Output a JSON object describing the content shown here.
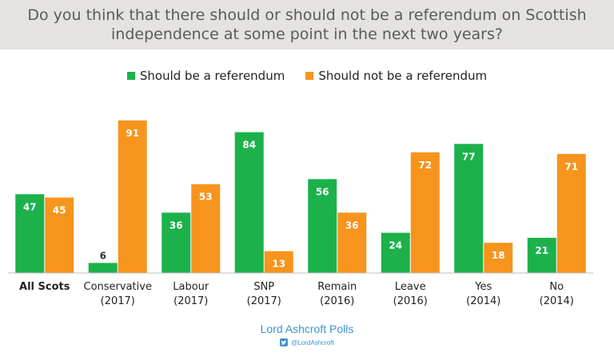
{
  "header": {
    "title": "Do you think that there should or should not be a referendum on Scottish independence at some point in the next two years?"
  },
  "legend": {
    "items": [
      {
        "label": "Should be a referendum",
        "color": "#1cb14b"
      },
      {
        "label": "Should not be a referendum",
        "color": "#f7941d"
      }
    ]
  },
  "chart_data": {
    "type": "bar",
    "title": "Do you think that there should or should not be a referendum on Scottish independence at some point in the next two years?",
    "categories": [
      [
        "All Scots"
      ],
      [
        "Conservative",
        "(2017)"
      ],
      [
        "Labour",
        "(2017)"
      ],
      [
        "SNP",
        "(2017)"
      ],
      [
        "Remain",
        "(2016)"
      ],
      [
        "Leave",
        "(2016)"
      ],
      [
        "Yes",
        "(2014)"
      ],
      [
        "No",
        "(2014)"
      ]
    ],
    "series": [
      {
        "name": "Should be a referendum",
        "color": "#1cb14b",
        "values": [
          47,
          6,
          36,
          84,
          56,
          24,
          77,
          21
        ]
      },
      {
        "name": "Should not be a referendum",
        "color": "#f7941d",
        "values": [
          45,
          91,
          53,
          13,
          36,
          72,
          18,
          71
        ]
      }
    ],
    "ylim": [
      0,
      100
    ],
    "data_labels": true,
    "legend_position": "top-center",
    "grid": false,
    "xlabel": "",
    "ylabel": ""
  },
  "footer": {
    "source": "Lord Ashcroft Polls",
    "handle": "@LordAshcroft",
    "handle_icon": "twitter-icon"
  }
}
